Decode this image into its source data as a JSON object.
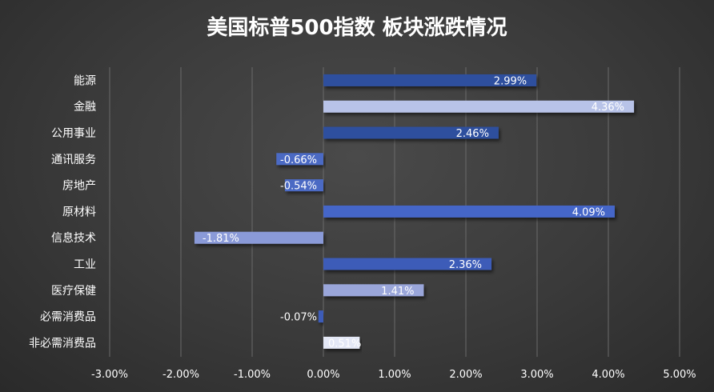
{
  "chart_data": {
    "type": "bar",
    "orientation": "horizontal",
    "title": "美国标普500指数 板块涨跌情况",
    "categories": [
      "能源",
      "金融",
      "公用事业",
      "通讯服务",
      "房地产",
      "原材料",
      "信息技术",
      "工业",
      "医疗保健",
      "必需消费品",
      "非必需消费品"
    ],
    "values": [
      2.99,
      4.36,
      2.46,
      -0.66,
      -0.54,
      4.09,
      -1.81,
      2.36,
      1.41,
      -0.07,
      0.51
    ],
    "data_labels": [
      "2.99%",
      "4.36%",
      "2.46%",
      "-0.66%",
      "-0.54%",
      "4.09%",
      "-1.81%",
      "2.36%",
      "1.41%",
      "-0.07%",
      "0.51%"
    ],
    "bar_colors": [
      "#2f4f9e",
      "#b8c3e8",
      "#2f4f9e",
      "#4c6bc4",
      "#4c6bc4",
      "#4466c8",
      "#8a9ad8",
      "#3d5cb8",
      "#9aa6da",
      "#3d5cb8",
      "#e4e8f6"
    ],
    "xlim": [
      -3,
      5
    ],
    "xticks": [
      -3,
      -2,
      -1,
      0,
      1,
      2,
      3,
      4,
      5
    ],
    "xtick_labels": [
      "-3.00%",
      "-2.00%",
      "-1.00%",
      "0.00%",
      "1.00%",
      "2.00%",
      "3.00%",
      "4.00%",
      "5.00%"
    ],
    "grid": true,
    "legend": "none"
  }
}
